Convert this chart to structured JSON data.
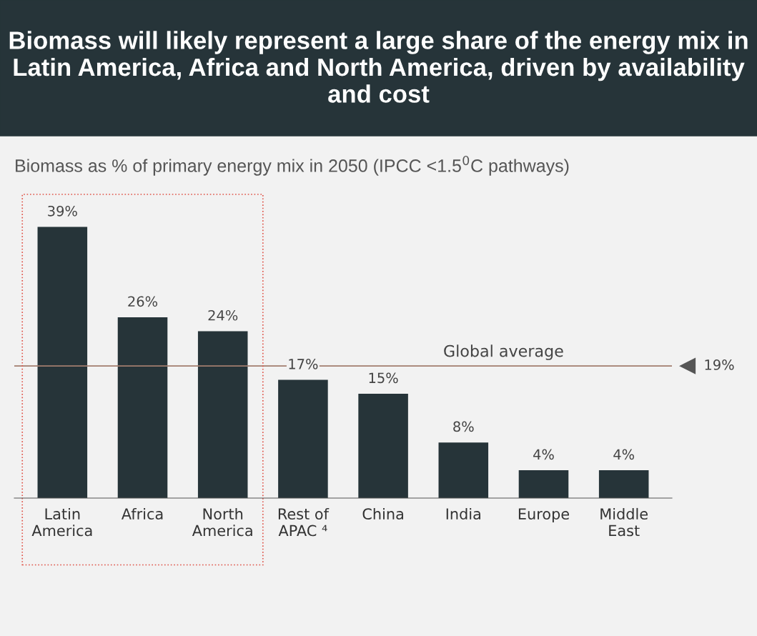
{
  "chart_data": {
    "type": "bar",
    "title": "Biomass will likely represent a large share of the energy mix in Latin America, Africa and North America, driven by availability and cost",
    "subtitle": "Biomass as % of primary energy mix in 2050 (IPCC <1.5$^{0}$C pathways)",
    "categories": [
      "Latin\nAmerica",
      "Africa",
      "North\nAmerica",
      "Rest of\nAPAC ⁴",
      "China",
      "India",
      "Europe",
      "Middle\nEast"
    ],
    "values": [
      39,
      26,
      24,
      17,
      15,
      8,
      4,
      4
    ],
    "value_labels": [
      "39%",
      "26%",
      "24%",
      "17%",
      "15%",
      "8%",
      "4%",
      "4%"
    ],
    "color": "#263439",
    "ref_lines": [
      {
        "axis": "y",
        "value": 19,
        "label": "19%",
        "color": "#a27d6e",
        "line_style": "solid"
      }
    ],
    "annotations": [
      "Global average"
    ],
    "grid": false,
    "legend": false
  }
}
